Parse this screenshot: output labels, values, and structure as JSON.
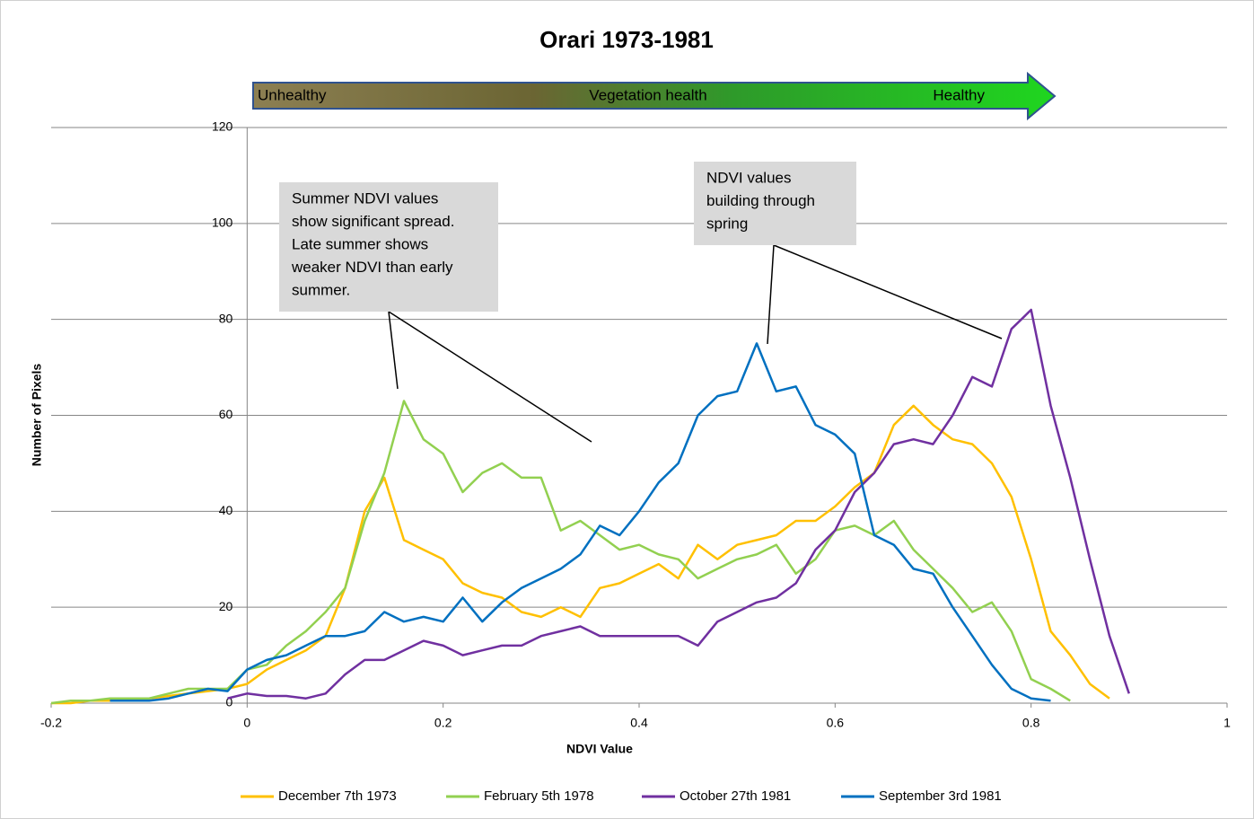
{
  "chart_data": {
    "type": "line",
    "title": "Orari 1973-1981",
    "xlabel": "NDVI Value",
    "ylabel": "Number of Pixels",
    "xlim": [
      -0.2,
      1
    ],
    "ylim": [
      0,
      120
    ],
    "xticks": [
      -0.2,
      0,
      0.2,
      0.4,
      0.6,
      0.8,
      1
    ],
    "yticks": [
      0,
      20,
      40,
      60,
      80,
      100,
      120
    ],
    "grid": true,
    "legend": "bottom",
    "banner": {
      "left": "Unhealthy",
      "center": "Vegetation health",
      "right": "Healthy"
    },
    "annotations": [
      {
        "lines": [
          "Summer NDVI values",
          "show significant spread.",
          "Late summer shows",
          "weaker NDVI than early",
          "summer."
        ]
      },
      {
        "lines": [
          "NDVI values",
          "building through",
          "spring"
        ]
      }
    ],
    "x": [
      -0.2,
      -0.18,
      -0.16,
      -0.14,
      -0.12,
      -0.1,
      -0.08,
      -0.06,
      -0.04,
      -0.02,
      0,
      0.02,
      0.04,
      0.06,
      0.08,
      0.1,
      0.12,
      0.14,
      0.16,
      0.18,
      0.2,
      0.22,
      0.24,
      0.26,
      0.28,
      0.3,
      0.32,
      0.34,
      0.36,
      0.38,
      0.4,
      0.42,
      0.44,
      0.46,
      0.48,
      0.5,
      0.52,
      0.54,
      0.56,
      0.58,
      0.6,
      0.62,
      0.64,
      0.66,
      0.68,
      0.7,
      0.72,
      0.74,
      0.76,
      0.78,
      0.8,
      0.82,
      0.84,
      0.86,
      0.88,
      0.9
    ],
    "series": [
      {
        "name": "December 7th 1973",
        "color": "#ffc000",
        "values": [
          0,
          0,
          0.5,
          0.5,
          1,
          1,
          1.5,
          2,
          2.5,
          3,
          4,
          7,
          9,
          11,
          14,
          24,
          40,
          47,
          34,
          32,
          30,
          25,
          23,
          22,
          19,
          18,
          20,
          18,
          24,
          25,
          27,
          29,
          26,
          33,
          30,
          33,
          34,
          35,
          38,
          38,
          41,
          45,
          48,
          58,
          62,
          58,
          55,
          54,
          50,
          43,
          30,
          15,
          10,
          4,
          1,
          null
        ]
      },
      {
        "name": "February 5th 1978",
        "color": "#92d050",
        "values": [
          0,
          0.5,
          0.5,
          1,
          1,
          1,
          2,
          3,
          3,
          3,
          7,
          8,
          12,
          15,
          19,
          24,
          38,
          48,
          63,
          55,
          52,
          44,
          48,
          50,
          47,
          47,
          36,
          38,
          35,
          32,
          33,
          31,
          30,
          26,
          28,
          30,
          31,
          33,
          27,
          30,
          36,
          37,
          35,
          38,
          32,
          28,
          24,
          19,
          21,
          15,
          5,
          3,
          0.5,
          null,
          null,
          null
        ]
      },
      {
        "name": "October 27th 1981",
        "color": "#7030a0",
        "values": [
          null,
          null,
          null,
          null,
          null,
          null,
          null,
          null,
          null,
          1,
          2,
          1.5,
          1.5,
          1,
          2,
          6,
          9,
          9,
          11,
          13,
          12,
          10,
          11,
          12,
          12,
          14,
          15,
          16,
          14,
          14,
          14,
          14,
          14,
          12,
          17,
          19,
          21,
          22,
          25,
          32,
          36,
          44,
          48,
          54,
          55,
          54,
          60,
          68,
          66,
          78,
          82,
          62,
          47,
          30,
          14,
          2
        ]
      },
      {
        "name": "September 3rd 1981",
        "color": "#0070c0",
        "values": [
          null,
          null,
          null,
          0.5,
          0.5,
          0.5,
          1,
          2,
          3,
          2.5,
          7,
          9,
          10,
          12,
          14,
          14,
          15,
          19,
          17,
          18,
          17,
          22,
          17,
          21,
          24,
          26,
          28,
          31,
          37,
          35,
          40,
          46,
          50,
          60,
          64,
          65,
          75,
          65,
          66,
          58,
          56,
          52,
          35,
          33,
          28,
          27,
          20,
          14,
          8,
          3,
          1,
          0.5,
          null,
          null,
          null,
          null
        ]
      }
    ]
  }
}
